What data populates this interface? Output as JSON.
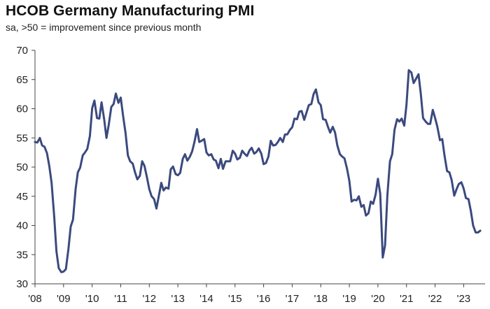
{
  "chart_data": {
    "type": "line",
    "title": "HCOB Germany Manufacturing PMI",
    "subtitle": "sa, >50 = improvement since previous month",
    "xlabel": "",
    "ylabel": "",
    "ylim": [
      30,
      70
    ],
    "yticks": [
      "30",
      "35",
      "40",
      "45",
      "50",
      "55",
      "60",
      "65",
      "70"
    ],
    "xlim": [
      2008.0,
      2023.75
    ],
    "xticks": [
      {
        "label": "'08",
        "value": 2008
      },
      {
        "label": "'09",
        "value": 2009
      },
      {
        "label": "'10",
        "value": 2010
      },
      {
        "label": "'11",
        "value": 2011
      },
      {
        "label": "'12",
        "value": 2012
      },
      {
        "label": "'13",
        "value": 2013
      },
      {
        "label": "'14",
        "value": 2014
      },
      {
        "label": "'15",
        "value": 2015
      },
      {
        "label": "'16",
        "value": 2016
      },
      {
        "label": "'17",
        "value": 2017
      },
      {
        "label": "'18",
        "value": 2018
      },
      {
        "label": "'19",
        "value": 2019
      },
      {
        "label": "'20",
        "value": 2020
      },
      {
        "label": "'21",
        "value": 2021
      },
      {
        "label": "'22",
        "value": 2022
      },
      {
        "label": "'23",
        "value": 2023
      }
    ],
    "grid": false,
    "line_color": "#3b4a7e",
    "series": [
      {
        "values": [
          [
            2008.0,
            54.3
          ],
          [
            2008.08,
            54.2
          ],
          [
            2008.17,
            55.0
          ],
          [
            2008.25,
            53.7
          ],
          [
            2008.33,
            53.5
          ],
          [
            2008.42,
            52.4
          ],
          [
            2008.5,
            50.2
          ],
          [
            2008.58,
            47.3
          ],
          [
            2008.67,
            41.6
          ],
          [
            2008.75,
            35.6
          ],
          [
            2008.83,
            32.7
          ],
          [
            2008.92,
            32.0
          ],
          [
            2009.0,
            32.1
          ],
          [
            2009.08,
            32.5
          ],
          [
            2009.17,
            36.0
          ],
          [
            2009.25,
            39.8
          ],
          [
            2009.33,
            41.0
          ],
          [
            2009.42,
            46.2
          ],
          [
            2009.5,
            49.1
          ],
          [
            2009.58,
            49.9
          ],
          [
            2009.67,
            52.0
          ],
          [
            2009.75,
            52.5
          ],
          [
            2009.83,
            53.1
          ],
          [
            2009.92,
            55.3
          ],
          [
            2010.0,
            60.1
          ],
          [
            2010.08,
            61.4
          ],
          [
            2010.17,
            58.4
          ],
          [
            2010.25,
            58.3
          ],
          [
            2010.33,
            61.1
          ],
          [
            2010.42,
            58.2
          ],
          [
            2010.5,
            55.0
          ],
          [
            2010.58,
            57.2
          ],
          [
            2010.67,
            60.3
          ],
          [
            2010.75,
            60.8
          ],
          [
            2010.83,
            62.6
          ],
          [
            2010.92,
            61.0
          ],
          [
            2011.0,
            61.9
          ],
          [
            2011.08,
            58.9
          ],
          [
            2011.17,
            55.8
          ],
          [
            2011.25,
            52.0
          ],
          [
            2011.33,
            51.0
          ],
          [
            2011.42,
            50.6
          ],
          [
            2011.5,
            49.1
          ],
          [
            2011.58,
            47.9
          ],
          [
            2011.67,
            48.5
          ],
          [
            2011.75,
            51.0
          ],
          [
            2011.83,
            50.2
          ],
          [
            2011.92,
            48.2
          ],
          [
            2012.0,
            46.2
          ],
          [
            2012.08,
            45.0
          ],
          [
            2012.17,
            44.5
          ],
          [
            2012.25,
            42.9
          ],
          [
            2012.33,
            45.0
          ],
          [
            2012.42,
            47.3
          ],
          [
            2012.5,
            46.0
          ],
          [
            2012.58,
            46.5
          ],
          [
            2012.67,
            46.3
          ],
          [
            2012.75,
            49.6
          ],
          [
            2012.83,
            50.1
          ],
          [
            2012.92,
            48.8
          ],
          [
            2013.0,
            48.6
          ],
          [
            2013.08,
            49.0
          ],
          [
            2013.17,
            51.4
          ],
          [
            2013.25,
            52.2
          ],
          [
            2013.33,
            51.1
          ],
          [
            2013.42,
            51.8
          ],
          [
            2013.5,
            52.7
          ],
          [
            2013.58,
            54.3
          ],
          [
            2013.67,
            56.5
          ],
          [
            2013.75,
            54.3
          ],
          [
            2013.83,
            54.5
          ],
          [
            2013.92,
            54.8
          ],
          [
            2014.0,
            52.5
          ],
          [
            2014.08,
            52.0
          ],
          [
            2014.17,
            52.2
          ],
          [
            2014.25,
            51.3
          ],
          [
            2014.33,
            51.1
          ],
          [
            2014.42,
            49.8
          ],
          [
            2014.5,
            51.4
          ],
          [
            2014.58,
            49.7
          ],
          [
            2014.67,
            51.0
          ],
          [
            2014.75,
            51.0
          ],
          [
            2014.83,
            51.0
          ],
          [
            2014.92,
            52.8
          ],
          [
            2015.0,
            52.3
          ],
          [
            2015.08,
            51.3
          ],
          [
            2015.17,
            51.6
          ],
          [
            2015.25,
            52.8
          ],
          [
            2015.33,
            52.3
          ],
          [
            2015.42,
            51.9
          ],
          [
            2015.5,
            52.8
          ],
          [
            2015.58,
            53.3
          ],
          [
            2015.67,
            52.3
          ],
          [
            2015.75,
            52.6
          ],
          [
            2015.83,
            53.2
          ],
          [
            2015.92,
            52.3
          ],
          [
            2016.0,
            50.5
          ],
          [
            2016.08,
            50.7
          ],
          [
            2016.17,
            51.8
          ],
          [
            2016.25,
            54.5
          ],
          [
            2016.33,
            53.7
          ],
          [
            2016.42,
            53.8
          ],
          [
            2016.5,
            54.3
          ],
          [
            2016.58,
            55.0
          ],
          [
            2016.67,
            54.3
          ],
          [
            2016.75,
            55.6
          ],
          [
            2016.83,
            55.6
          ],
          [
            2016.92,
            56.4
          ],
          [
            2017.0,
            56.8
          ],
          [
            2017.08,
            58.3
          ],
          [
            2017.17,
            58.2
          ],
          [
            2017.25,
            59.5
          ],
          [
            2017.33,
            59.6
          ],
          [
            2017.42,
            58.1
          ],
          [
            2017.5,
            59.3
          ],
          [
            2017.58,
            60.6
          ],
          [
            2017.67,
            60.8
          ],
          [
            2017.75,
            62.5
          ],
          [
            2017.83,
            63.3
          ],
          [
            2017.92,
            61.1
          ],
          [
            2018.0,
            60.6
          ],
          [
            2018.08,
            58.2
          ],
          [
            2018.17,
            58.1
          ],
          [
            2018.25,
            56.9
          ],
          [
            2018.33,
            55.9
          ],
          [
            2018.42,
            56.9
          ],
          [
            2018.5,
            55.9
          ],
          [
            2018.58,
            53.7
          ],
          [
            2018.67,
            52.2
          ],
          [
            2018.75,
            51.8
          ],
          [
            2018.83,
            51.5
          ],
          [
            2018.92,
            49.7
          ],
          [
            2019.0,
            47.6
          ],
          [
            2019.08,
            44.1
          ],
          [
            2019.17,
            44.4
          ],
          [
            2019.25,
            44.3
          ],
          [
            2019.33,
            45.0
          ],
          [
            2019.42,
            43.2
          ],
          [
            2019.5,
            43.5
          ],
          [
            2019.58,
            41.7
          ],
          [
            2019.67,
            42.1
          ],
          [
            2019.75,
            44.1
          ],
          [
            2019.83,
            43.7
          ],
          [
            2019.92,
            45.3
          ],
          [
            2020.0,
            48.0
          ],
          [
            2020.08,
            45.4
          ],
          [
            2020.17,
            34.5
          ],
          [
            2020.25,
            36.6
          ],
          [
            2020.33,
            45.2
          ],
          [
            2020.42,
            51.0
          ],
          [
            2020.5,
            52.2
          ],
          [
            2020.58,
            56.4
          ],
          [
            2020.67,
            58.2
          ],
          [
            2020.75,
            57.8
          ],
          [
            2020.83,
            58.3
          ],
          [
            2020.92,
            57.1
          ],
          [
            2021.0,
            60.7
          ],
          [
            2021.08,
            66.6
          ],
          [
            2021.17,
            66.2
          ],
          [
            2021.25,
            64.4
          ],
          [
            2021.33,
            65.1
          ],
          [
            2021.42,
            65.9
          ],
          [
            2021.5,
            62.6
          ],
          [
            2021.58,
            58.4
          ],
          [
            2021.67,
            57.8
          ],
          [
            2021.75,
            57.4
          ],
          [
            2021.83,
            57.4
          ],
          [
            2021.92,
            59.8
          ],
          [
            2022.0,
            58.4
          ],
          [
            2022.08,
            56.9
          ],
          [
            2022.17,
            54.6
          ],
          [
            2022.25,
            54.8
          ],
          [
            2022.33,
            52.0
          ],
          [
            2022.42,
            49.3
          ],
          [
            2022.5,
            49.1
          ],
          [
            2022.58,
            47.8
          ],
          [
            2022.67,
            45.1
          ],
          [
            2022.75,
            46.2
          ],
          [
            2022.83,
            47.1
          ],
          [
            2022.92,
            47.4
          ],
          [
            2023.0,
            46.3
          ],
          [
            2023.08,
            44.7
          ],
          [
            2023.17,
            44.5
          ],
          [
            2023.25,
            42.5
          ],
          [
            2023.33,
            40.0
          ],
          [
            2023.42,
            38.8
          ],
          [
            2023.5,
            38.8
          ],
          [
            2023.58,
            39.1
          ]
        ]
      }
    ]
  }
}
